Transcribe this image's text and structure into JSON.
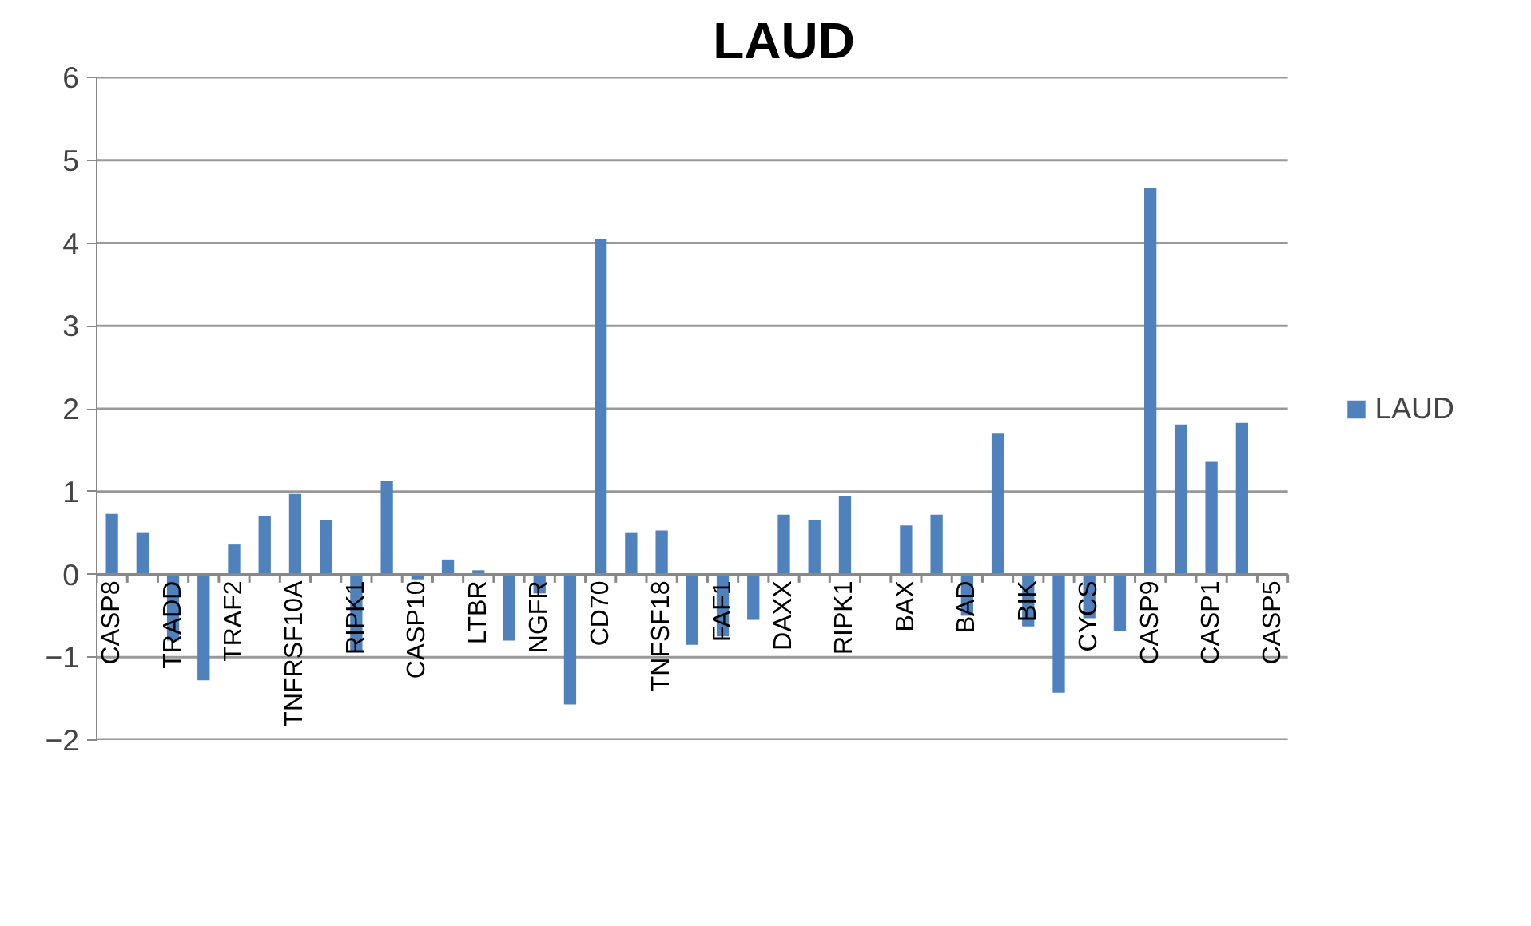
{
  "chart_data": {
    "type": "bar",
    "title": "LAUD",
    "categories": [
      "CASP8",
      null,
      "TRADD",
      null,
      "TRAF2",
      null,
      "TNFRSF10A",
      null,
      "RIPK1",
      null,
      "CASP10",
      null,
      "LTBR",
      null,
      "NGFR",
      null,
      "CD70",
      null,
      "TNFSF18",
      null,
      "FAF1",
      null,
      "DAXX",
      null,
      "RIPK1",
      null,
      "BAX",
      null,
      "BAD",
      null,
      "BIK",
      null,
      "CYCS",
      null,
      "CASP9",
      null,
      "CASP1",
      null,
      "CASP5"
    ],
    "series": [
      {
        "name": "LAUD",
        "color": "#4f81bd",
        "values": [
          0.73,
          0.5,
          -0.8,
          -1.28,
          0.36,
          0.7,
          0.97,
          0.65,
          -0.92,
          1.13,
          -0.06,
          0.18,
          0.05,
          -0.8,
          -0.23,
          -1.57,
          4.05,
          0.5,
          0.53,
          -0.85,
          -0.75,
          -0.55,
          0.72,
          0.65,
          0.95,
          0,
          0.59,
          0.72,
          -0.5,
          1.7,
          -0.63,
          -1.43,
          -0.53,
          -0.69,
          4.66,
          1.81,
          1.36,
          1.83,
          0
        ]
      }
    ],
    "ylim": [
      -2,
      6
    ],
    "yticks": [
      -2,
      -1,
      0,
      1,
      2,
      3,
      4,
      5,
      6
    ],
    "grid": "y",
    "legend": "right"
  }
}
